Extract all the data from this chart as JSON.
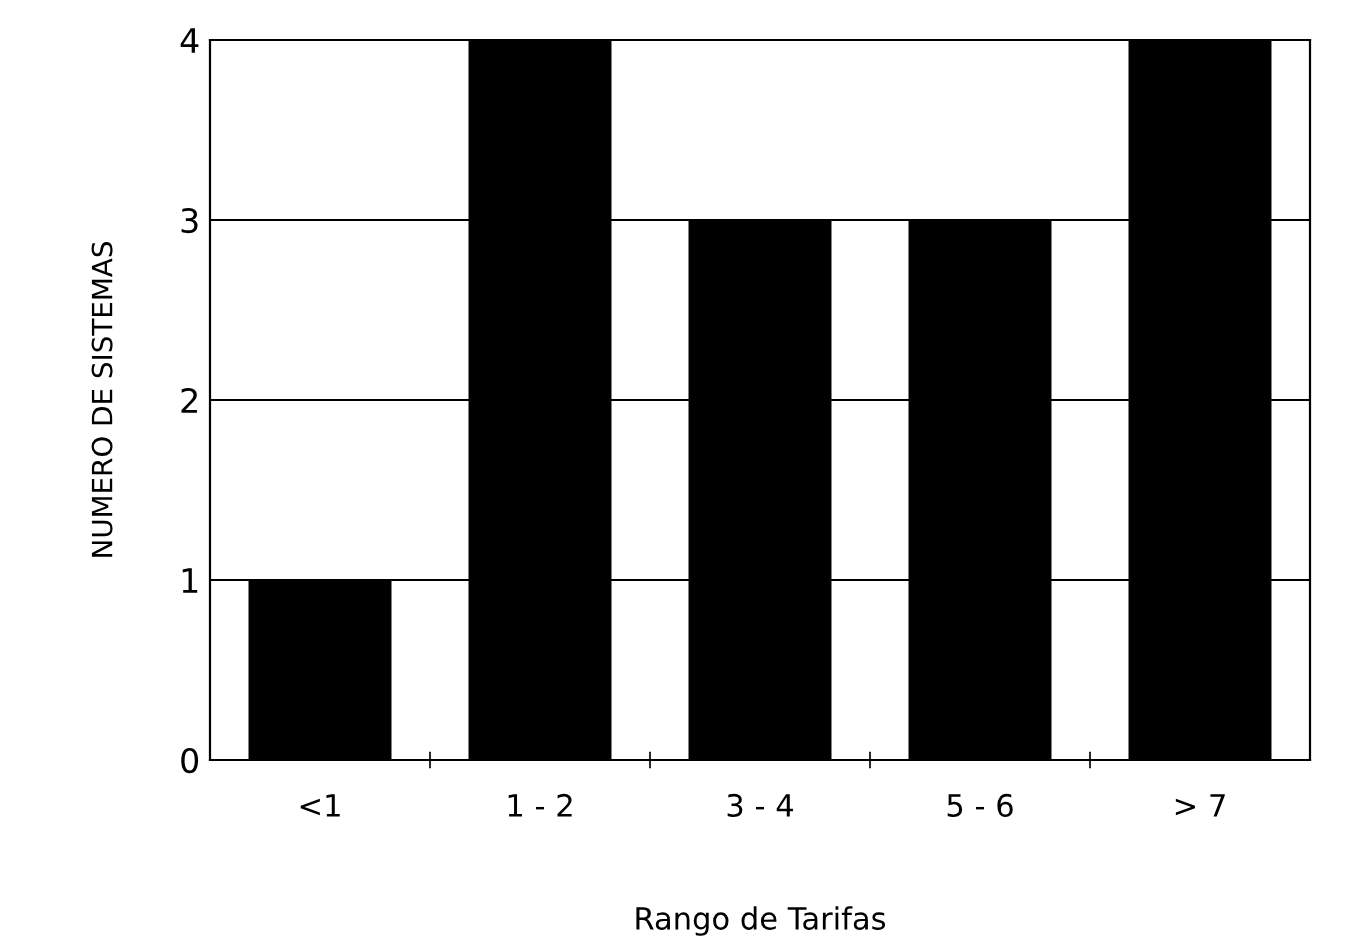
{
  "chart_data": {
    "type": "bar",
    "xlabel": "Rango de Tarifas",
    "ylabel": "NUMERO DE SISTEMAS",
    "categories": [
      "<1",
      "1 - 2",
      "3 - 4",
      "5 - 6",
      "> 7"
    ],
    "values": [
      1,
      4,
      3,
      3,
      4
    ],
    "color": "#000000",
    "ylim": [
      0,
      4
    ],
    "yticks": [
      0,
      1,
      2,
      3,
      4
    ],
    "grid": "y"
  }
}
